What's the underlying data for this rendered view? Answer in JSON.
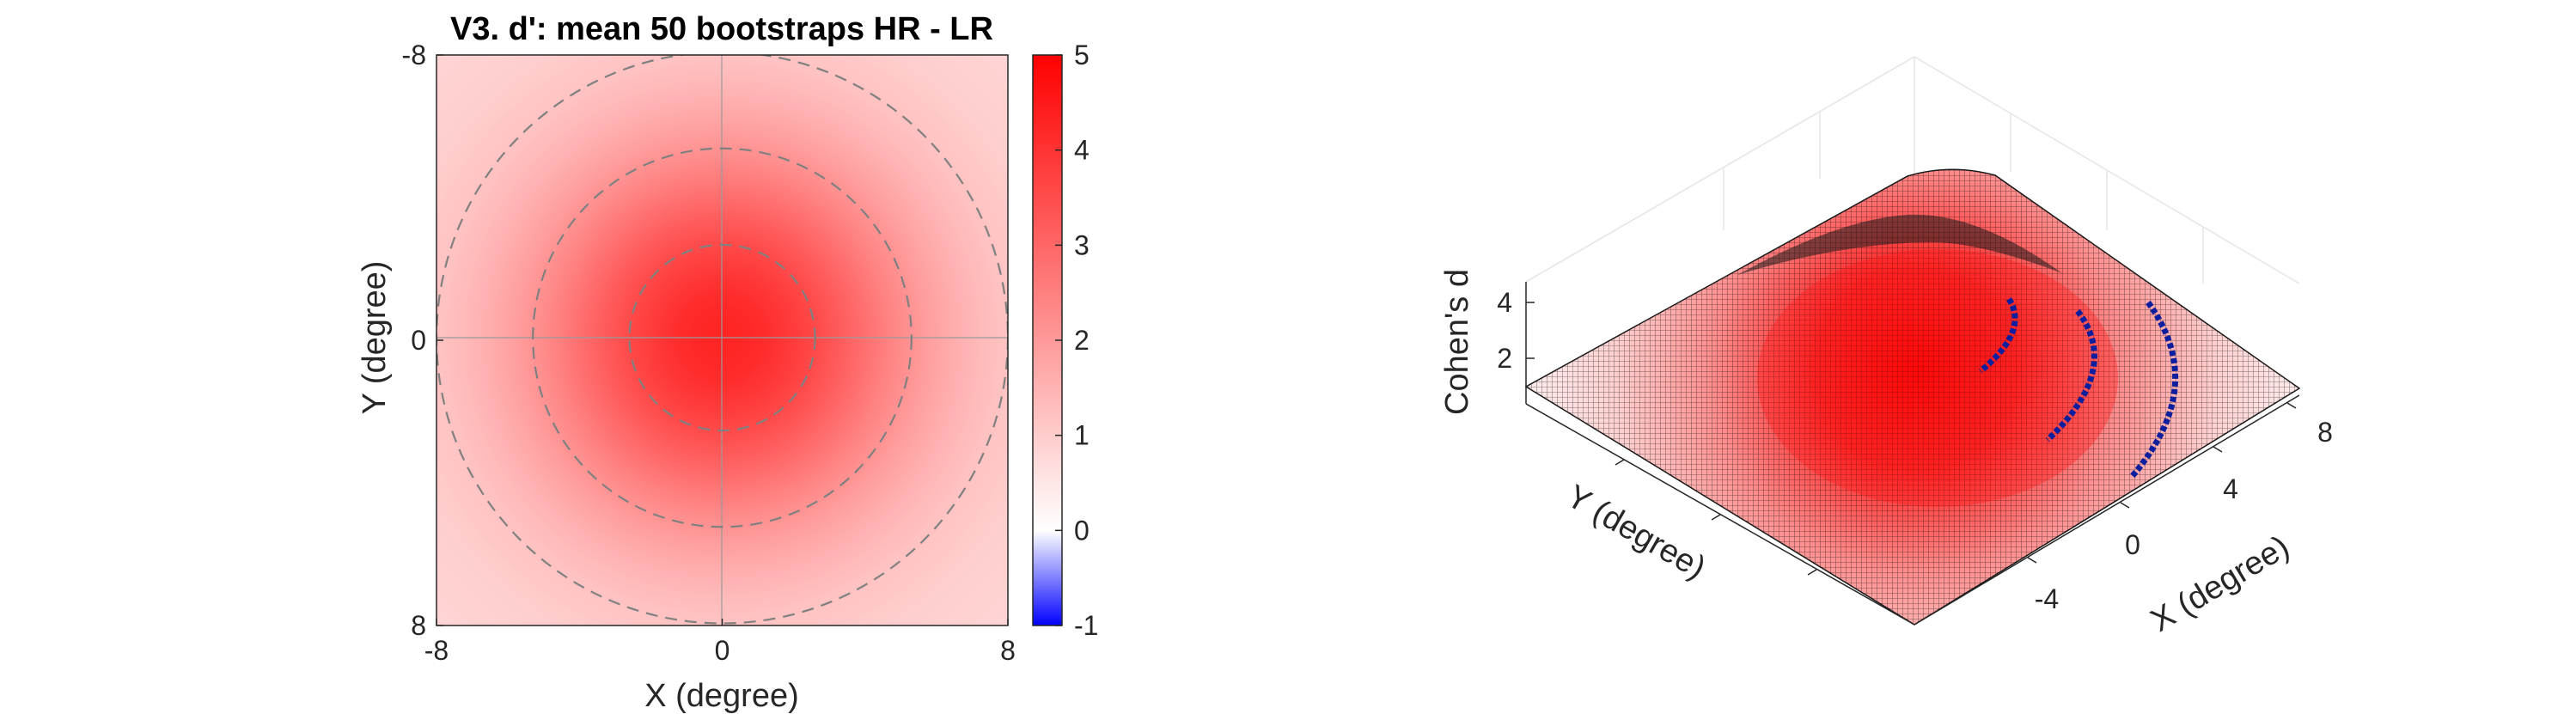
{
  "chart_data": [
    {
      "type": "heatmap",
      "title": "V3. d': mean 50 bootstraps HR - LR",
      "xlabel": "X (degree)",
      "ylabel": "Y (degree)",
      "xlim": [
        -8,
        8
      ],
      "ylim": [
        -8,
        8
      ],
      "y_direction": "reversed",
      "x_ticks": [
        "-8",
        "0",
        "8"
      ],
      "y_ticks": [
        "-8",
        "0",
        "8"
      ],
      "grid": true,
      "surface": {
        "peak_value": 4.3,
        "peak_center": [
          0,
          0
        ],
        "falloff_sigma_deg": 3.8,
        "edge_value": 0.8
      },
      "contour_rings": {
        "style": "dashed",
        "color": "#808080",
        "radii": [
          2.6,
          5.3,
          8.0
        ]
      },
      "colorbar": {
        "min": -1,
        "max": 5,
        "ticks": [
          "5",
          "4",
          "3",
          "2",
          "1",
          "0",
          "-1"
        ],
        "colormap": [
          "#0000ff",
          "#ffffff",
          "#ff0000"
        ]
      }
    },
    {
      "type": "surface3d",
      "zlabel": "Cohen's d",
      "xlabel": "X (degree)",
      "ylabel": "Y (degree)",
      "x_ticks": [
        "-4",
        "0",
        "4",
        "8"
      ],
      "z_ticks": [
        "2",
        "4"
      ],
      "xlim": [
        -8,
        8
      ],
      "ylim": [
        -8,
        8
      ],
      "zlim": [
        1,
        5
      ],
      "mesh_color": "#000000",
      "face_colormap": [
        "#ffffff",
        "#ff0000"
      ],
      "overlay_arcs": {
        "color": "#00008b",
        "radii": [
          2.6,
          5.3,
          8.0
        ]
      }
    }
  ]
}
